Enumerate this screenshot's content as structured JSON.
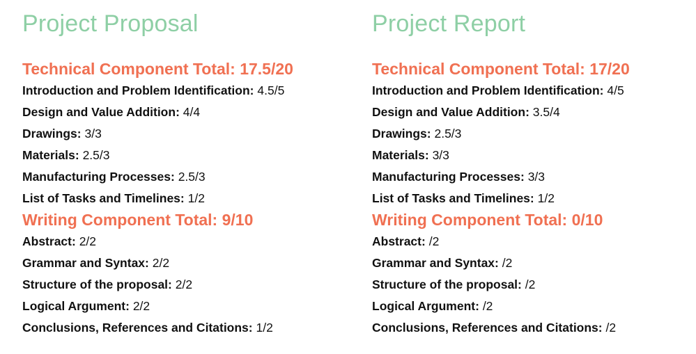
{
  "colors": {
    "title_green": "#8ecfa5",
    "section_orange": "#f07052",
    "text": "#111111"
  },
  "columns": [
    {
      "title": "Project Proposal",
      "sections": [
        {
          "heading": "Technical Component Total: 17.5/20",
          "items": [
            {
              "label": "Introduction and Problem Identification:",
              "score": "4.5/5"
            },
            {
              "label": "Design and Value Addition:",
              "score": "4/4"
            },
            {
              "label": "Drawings:",
              "score": "3/3"
            },
            {
              "label": "Materials:",
              "score": "2.5/3"
            },
            {
              "label": "Manufacturing Processes:",
              "score": "2.5/3"
            },
            {
              "label": "List of Tasks and Timelines:",
              "score": "1/2"
            }
          ]
        },
        {
          "heading": "Writing Component Total: 9/10",
          "items": [
            {
              "label": "Abstract:",
              "score": "2/2"
            },
            {
              "label": "Grammar and Syntax:",
              "score": "2/2"
            },
            {
              "label": "Structure of the proposal:",
              "score": "2/2"
            },
            {
              "label": "Logical Argument:",
              "score": "2/2"
            },
            {
              "label": "Conclusions, References and Citations:",
              "score": "1/2"
            }
          ]
        }
      ]
    },
    {
      "title": "Project Report",
      "sections": [
        {
          "heading": "Technical Component Total: 17/20",
          "items": [
            {
              "label": "Introduction and Problem Identification:",
              "score": "4/5"
            },
            {
              "label": "Design and Value Addition:",
              "score": "3.5/4"
            },
            {
              "label": "Drawings:",
              "score": "2.5/3"
            },
            {
              "label": "Materials:",
              "score": "3/3"
            },
            {
              "label": "Manufacturing Processes:",
              "score": "3/3"
            },
            {
              "label": "List of Tasks and Timelines:",
              "score": "1/2"
            }
          ]
        },
        {
          "heading": "Writing Component Total: 0/10",
          "items": [
            {
              "label": "Abstract:",
              "score": "/2"
            },
            {
              "label": "Grammar and Syntax:",
              "score": "/2"
            },
            {
              "label": "Structure of the proposal:",
              "score": "/2"
            },
            {
              "label": "Logical Argument:",
              "score": "/2"
            },
            {
              "label": "Conclusions, References and Citations:",
              "score": "/2"
            }
          ]
        }
      ]
    }
  ]
}
